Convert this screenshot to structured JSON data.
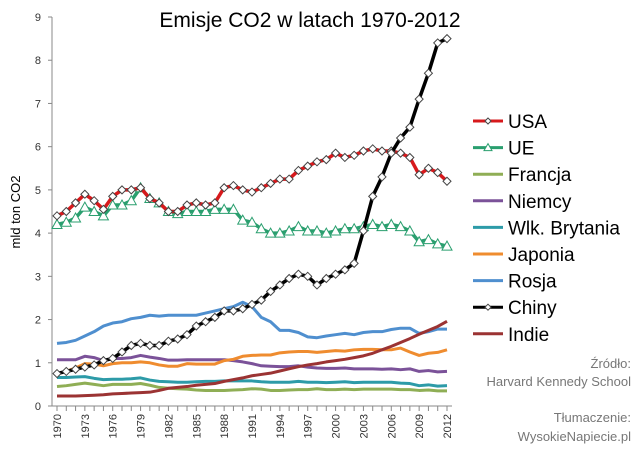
{
  "chart_data": {
    "type": "line",
    "title": "Emisje CO2 w latach 1970-2012",
    "ylabel": "mld ton CO2",
    "xlabel": "",
    "ylim": [
      0,
      9
    ],
    "xlim": [
      1970,
      2012
    ],
    "yticks": [
      0,
      1,
      2,
      3,
      4,
      5,
      6,
      7,
      8,
      9
    ],
    "xtick_labels": [
      "1970",
      "1973",
      "1976",
      "1979",
      "1982",
      "1985",
      "1988",
      "1991",
      "1994",
      "1997",
      "2000",
      "2003",
      "2006",
      "2009",
      "2012"
    ],
    "grid": false,
    "legend_position": "right",
    "x": [
      1970,
      1971,
      1972,
      1973,
      1974,
      1975,
      1976,
      1977,
      1978,
      1979,
      1980,
      1981,
      1982,
      1983,
      1984,
      1985,
      1986,
      1987,
      1988,
      1989,
      1990,
      1991,
      1992,
      1993,
      1994,
      1995,
      1996,
      1997,
      1998,
      1999,
      2000,
      2001,
      2002,
      2003,
      2004,
      2005,
      2006,
      2007,
      2008,
      2009,
      2010,
      2011,
      2012
    ],
    "series": [
      {
        "name": "USA",
        "color": "#d7191c",
        "marker": "diamond",
        "values": [
          4.4,
          4.5,
          4.7,
          4.9,
          4.75,
          4.55,
          4.85,
          5.0,
          5.0,
          5.05,
          4.8,
          4.7,
          4.5,
          4.5,
          4.65,
          4.7,
          4.65,
          4.7,
          5.05,
          5.1,
          5.0,
          4.95,
          5.05,
          5.15,
          5.25,
          5.25,
          5.45,
          5.55,
          5.65,
          5.7,
          5.85,
          5.75,
          5.8,
          5.9,
          5.95,
          5.9,
          5.9,
          5.85,
          5.75,
          5.35,
          5.5,
          5.4,
          5.2
        ]
      },
      {
        "name": "UE",
        "color": "#2a9f6f",
        "marker": "triangle",
        "values": [
          4.2,
          4.25,
          4.35,
          4.6,
          4.5,
          4.4,
          4.65,
          4.65,
          4.75,
          5.05,
          4.8,
          4.7,
          4.5,
          4.45,
          4.5,
          4.5,
          4.5,
          4.55,
          4.55,
          4.55,
          4.3,
          4.25,
          4.1,
          4.0,
          4.0,
          4.05,
          4.15,
          4.05,
          4.05,
          4.0,
          4.05,
          4.1,
          4.1,
          4.15,
          4.2,
          4.15,
          4.2,
          4.15,
          4.05,
          3.8,
          3.85,
          3.75,
          3.7
        ]
      },
      {
        "name": "Francja",
        "color": "#8fae55",
        "marker": "none",
        "values": [
          0.45,
          0.47,
          0.5,
          0.53,
          0.5,
          0.47,
          0.5,
          0.5,
          0.5,
          0.52,
          0.48,
          0.43,
          0.41,
          0.4,
          0.39,
          0.37,
          0.36,
          0.36,
          0.36,
          0.37,
          0.38,
          0.4,
          0.39,
          0.36,
          0.36,
          0.37,
          0.38,
          0.38,
          0.4,
          0.38,
          0.38,
          0.39,
          0.38,
          0.39,
          0.39,
          0.39,
          0.39,
          0.38,
          0.38,
          0.36,
          0.37,
          0.35,
          0.35
        ]
      },
      {
        "name": "Niemcy",
        "color": "#7b5299",
        "marker": "none",
        "values": [
          1.07,
          1.07,
          1.07,
          1.15,
          1.12,
          1.05,
          1.1,
          1.1,
          1.12,
          1.17,
          1.13,
          1.1,
          1.06,
          1.06,
          1.07,
          1.07,
          1.07,
          1.07,
          1.07,
          1.05,
          1.02,
          0.98,
          0.93,
          0.92,
          0.91,
          0.91,
          0.93,
          0.9,
          0.88,
          0.87,
          0.87,
          0.88,
          0.86,
          0.86,
          0.86,
          0.85,
          0.86,
          0.84,
          0.86,
          0.8,
          0.82,
          0.79,
          0.8
        ]
      },
      {
        "name": "Wlk. Brytania",
        "color": "#2d9ba8",
        "marker": "none",
        "values": [
          0.66,
          0.66,
          0.67,
          0.68,
          0.64,
          0.61,
          0.62,
          0.62,
          0.63,
          0.65,
          0.6,
          0.57,
          0.56,
          0.55,
          0.55,
          0.56,
          0.57,
          0.57,
          0.58,
          0.58,
          0.58,
          0.58,
          0.56,
          0.55,
          0.55,
          0.55,
          0.57,
          0.55,
          0.55,
          0.54,
          0.55,
          0.56,
          0.54,
          0.55,
          0.55,
          0.55,
          0.55,
          0.53,
          0.52,
          0.47,
          0.49,
          0.46,
          0.47
        ]
      },
      {
        "name": "Japonia",
        "color": "#ef8c2f",
        "marker": "none",
        "values": [
          0.75,
          0.8,
          0.88,
          0.98,
          0.97,
          0.93,
          0.98,
          1.0,
          1.0,
          1.02,
          1.0,
          0.95,
          0.92,
          0.92,
          0.98,
          0.97,
          0.97,
          0.97,
          1.05,
          1.08,
          1.15,
          1.17,
          1.18,
          1.18,
          1.23,
          1.25,
          1.26,
          1.26,
          1.24,
          1.26,
          1.28,
          1.27,
          1.3,
          1.31,
          1.31,
          1.3,
          1.3,
          1.34,
          1.25,
          1.17,
          1.22,
          1.24,
          1.3
        ]
      },
      {
        "name": "Rosja",
        "color": "#4f8fcf",
        "marker": "none",
        "values": [
          1.45,
          1.47,
          1.52,
          1.62,
          1.72,
          1.85,
          1.92,
          1.95,
          2.02,
          2.05,
          2.1,
          2.08,
          2.1,
          2.1,
          2.1,
          2.1,
          2.15,
          2.2,
          2.25,
          2.3,
          2.4,
          2.3,
          2.05,
          1.95,
          1.75,
          1.75,
          1.7,
          1.6,
          1.58,
          1.62,
          1.65,
          1.68,
          1.65,
          1.7,
          1.72,
          1.72,
          1.77,
          1.8,
          1.8,
          1.68,
          1.72,
          1.78,
          1.78
        ]
      },
      {
        "name": "Chiny",
        "color": "#000000",
        "marker": "diamond",
        "values": [
          0.75,
          0.8,
          0.85,
          0.9,
          0.95,
          1.05,
          1.1,
          1.25,
          1.4,
          1.45,
          1.4,
          1.4,
          1.5,
          1.55,
          1.65,
          1.85,
          1.95,
          2.05,
          2.2,
          2.2,
          2.25,
          2.35,
          2.45,
          2.65,
          2.8,
          2.95,
          3.05,
          3.0,
          2.8,
          2.95,
          3.05,
          3.15,
          3.3,
          4.05,
          4.85,
          5.3,
          5.85,
          6.2,
          6.45,
          7.1,
          7.7,
          8.4,
          8.5
        ]
      },
      {
        "name": "Indie",
        "color": "#9b3333",
        "marker": "none",
        "values": [
          0.23,
          0.23,
          0.23,
          0.24,
          0.25,
          0.26,
          0.28,
          0.29,
          0.3,
          0.31,
          0.32,
          0.36,
          0.41,
          0.43,
          0.45,
          0.48,
          0.5,
          0.52,
          0.57,
          0.61,
          0.65,
          0.7,
          0.73,
          0.76,
          0.81,
          0.86,
          0.91,
          0.95,
          0.98,
          1.02,
          1.05,
          1.08,
          1.12,
          1.16,
          1.22,
          1.3,
          1.38,
          1.47,
          1.56,
          1.66,
          1.75,
          1.84,
          1.96
        ]
      }
    ],
    "source_label": "Źródło:",
    "source": "Harvard Kennedy School",
    "translation_label": "Tłumaczenie:",
    "translation": "WysokieNapiecie.pl"
  }
}
